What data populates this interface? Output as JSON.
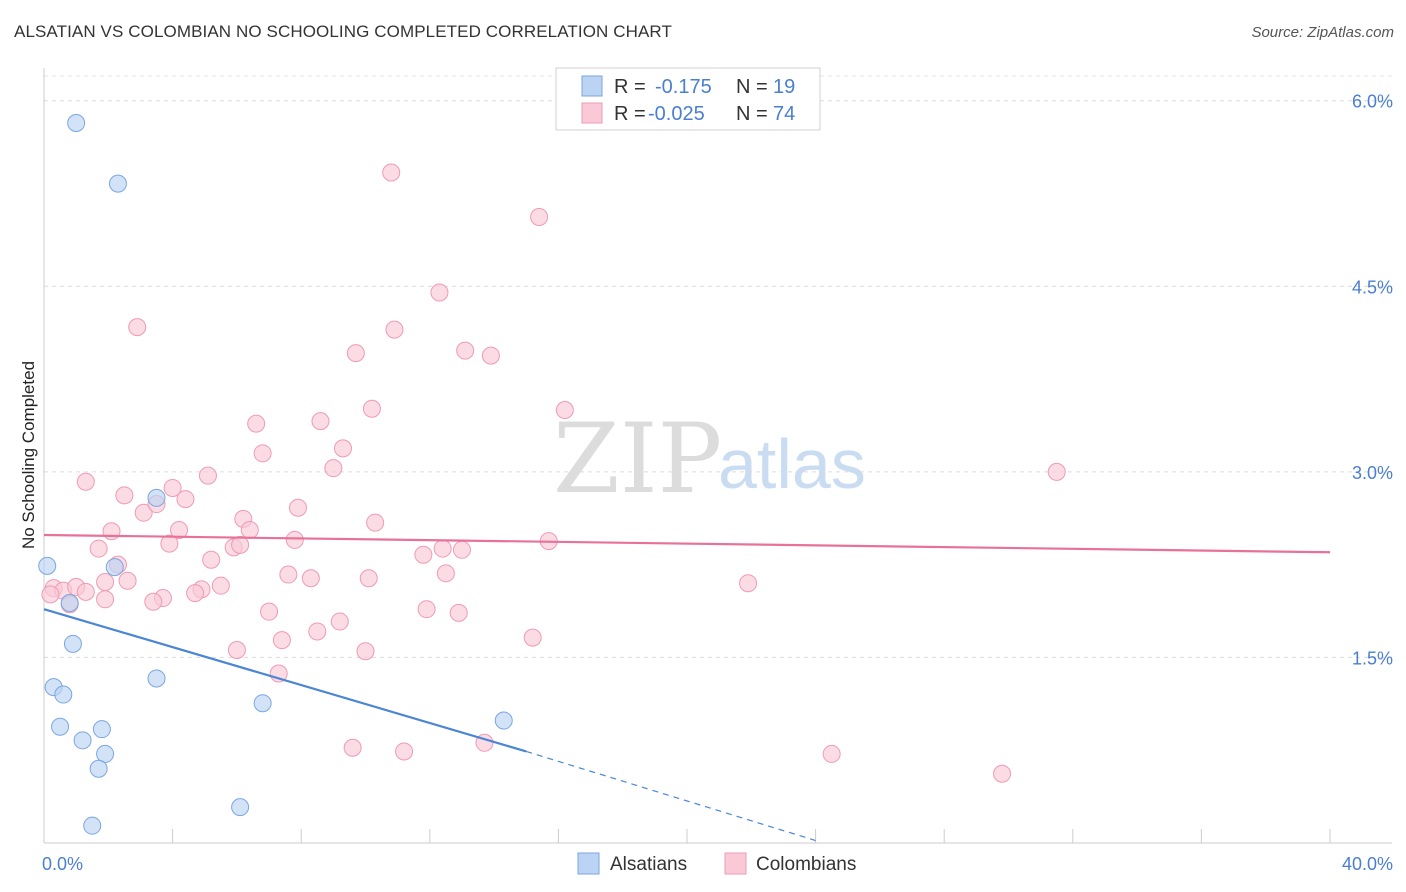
{
  "header": {
    "title": "ALSATIAN VS COLOMBIAN NO SCHOOLING COMPLETED CORRELATION CHART",
    "source": "Source: ZipAtlas.com"
  },
  "watermark": {
    "zip": "ZIP",
    "atlas": "atlas"
  },
  "legend": {
    "rows": [
      {
        "r_label": "R =",
        "r_value": "-0.175",
        "n_label": "N =",
        "n_value": "19",
        "color": "#a9c8f0"
      },
      {
        "r_label": "R =",
        "r_value": "-0.025",
        "n_label": "N =",
        "n_value": "74",
        "color": "#f7b8cb"
      }
    ]
  },
  "chart_data": {
    "type": "scatter",
    "title": "ALSATIAN VS COLOMBIAN NO SCHOOLING COMPLETED CORRELATION CHART",
    "xlabel": "",
    "ylabel": "No Schooling Completed",
    "xlim": [
      0,
      40
    ],
    "ylim": [
      0,
      6.2
    ],
    "x_tick_labels": [
      "0.0%",
      "40.0%"
    ],
    "y_ticks": [
      1.5,
      3.0,
      4.5,
      6.0
    ],
    "y_tick_labels": [
      "1.5%",
      "3.0%",
      "4.5%",
      "6.0%"
    ],
    "grid": true,
    "series": [
      {
        "name": "Alsatians",
        "color": "#4a85d6",
        "fill": "#bcd4f3",
        "stroke": "#7aa6e0",
        "points": [
          [
            0.1,
            2.24
          ],
          [
            1.0,
            5.82
          ],
          [
            2.3,
            5.33
          ],
          [
            2.2,
            2.23
          ],
          [
            0.8,
            1.94
          ],
          [
            0.9,
            1.61
          ],
          [
            3.5,
            2.79
          ],
          [
            0.3,
            1.26
          ],
          [
            0.6,
            1.2
          ],
          [
            3.5,
            1.33
          ],
          [
            0.5,
            0.94
          ],
          [
            1.8,
            0.92
          ],
          [
            1.2,
            0.83
          ],
          [
            1.9,
            0.72
          ],
          [
            1.7,
            0.6
          ],
          [
            6.8,
            1.13
          ],
          [
            14.3,
            0.99
          ],
          [
            6.1,
            0.29
          ],
          [
            1.5,
            0.14
          ]
        ],
        "trend": {
          "x": [
            0,
            15
          ],
          "y": [
            1.89,
            0.74
          ]
        },
        "trend_dashed": {
          "x": [
            15,
            24
          ],
          "y": [
            0.74,
            0.02
          ]
        }
      },
      {
        "name": "Colombians",
        "color": "#e8719a",
        "fill": "#f9c9d7",
        "stroke": "#f09ab5",
        "points": [
          [
            10.8,
            5.42
          ],
          [
            15.4,
            5.06
          ],
          [
            12.3,
            4.45
          ],
          [
            2.9,
            4.17
          ],
          [
            10.9,
            4.15
          ],
          [
            9.7,
            3.96
          ],
          [
            13.1,
            3.98
          ],
          [
            13.9,
            3.94
          ],
          [
            10.2,
            3.51
          ],
          [
            16.2,
            3.5
          ],
          [
            6.6,
            3.39
          ],
          [
            8.6,
            3.41
          ],
          [
            9.3,
            3.19
          ],
          [
            6.8,
            3.15
          ],
          [
            9.0,
            3.03
          ],
          [
            5.1,
            2.97
          ],
          [
            1.3,
            2.92
          ],
          [
            4.0,
            2.87
          ],
          [
            2.5,
            2.81
          ],
          [
            4.4,
            2.78
          ],
          [
            7.9,
            2.71
          ],
          [
            3.1,
            2.67
          ],
          [
            3.5,
            2.74
          ],
          [
            6.2,
            2.62
          ],
          [
            10.3,
            2.59
          ],
          [
            2.1,
            2.52
          ],
          [
            4.2,
            2.53
          ],
          [
            6.4,
            2.53
          ],
          [
            7.8,
            2.45
          ],
          [
            15.7,
            2.44
          ],
          [
            1.7,
            2.38
          ],
          [
            3.9,
            2.42
          ],
          [
            5.9,
            2.39
          ],
          [
            6.1,
            2.41
          ],
          [
            12.4,
            2.38
          ],
          [
            13.0,
            2.37
          ],
          [
            11.8,
            2.33
          ],
          [
            5.2,
            2.29
          ],
          [
            2.3,
            2.25
          ],
          [
            7.6,
            2.17
          ],
          [
            8.3,
            2.14
          ],
          [
            12.5,
            2.18
          ],
          [
            10.1,
            2.14
          ],
          [
            1.9,
            2.11
          ],
          [
            2.6,
            2.12
          ],
          [
            21.9,
            2.1
          ],
          [
            0.3,
            2.06
          ],
          [
            0.6,
            2.04
          ],
          [
            1.0,
            2.07
          ],
          [
            1.3,
            2.03
          ],
          [
            4.9,
            2.05
          ],
          [
            5.5,
            2.08
          ],
          [
            4.7,
            2.02
          ],
          [
            0.2,
            2.01
          ],
          [
            1.9,
            1.97
          ],
          [
            3.7,
            1.98
          ],
          [
            3.4,
            1.95
          ],
          [
            0.8,
            1.93
          ],
          [
            7.0,
            1.87
          ],
          [
            11.9,
            1.89
          ],
          [
            12.9,
            1.86
          ],
          [
            9.2,
            1.79
          ],
          [
            8.5,
            1.71
          ],
          [
            15.2,
            1.66
          ],
          [
            7.4,
            1.64
          ],
          [
            6.0,
            1.56
          ],
          [
            10.0,
            1.55
          ],
          [
            7.3,
            1.37
          ],
          [
            9.6,
            0.77
          ],
          [
            11.2,
            0.74
          ],
          [
            13.7,
            0.81
          ],
          [
            24.5,
            0.72
          ],
          [
            29.8,
            0.56
          ],
          [
            31.5,
            3.0
          ]
        ],
        "trend": {
          "x": [
            0,
            40
          ],
          "y": [
            2.49,
            2.35
          ]
        }
      }
    ]
  }
}
